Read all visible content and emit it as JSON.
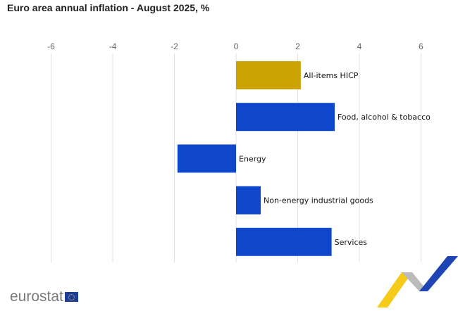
{
  "chart_data": {
    "type": "bar",
    "orientation": "horizontal",
    "title": "Euro area annual inflation - August 2025, %",
    "categories": [
      "All-items HICP",
      "Food, alcohol & tobacco",
      "Energy",
      "Non-energy industrial goods",
      "Services"
    ],
    "values": [
      2.1,
      3.2,
      -1.9,
      0.8,
      3.1
    ],
    "colors": [
      "#cca300",
      "#0f47cc",
      "#0f47cc",
      "#0f47cc",
      "#0f47cc"
    ],
    "xlim": [
      -6,
      7
    ],
    "ticks": [
      -6,
      -4,
      -2,
      0,
      2,
      4,
      6
    ],
    "grid": true,
    "legend": "none"
  },
  "branding": {
    "logo_text": "eurostat"
  }
}
